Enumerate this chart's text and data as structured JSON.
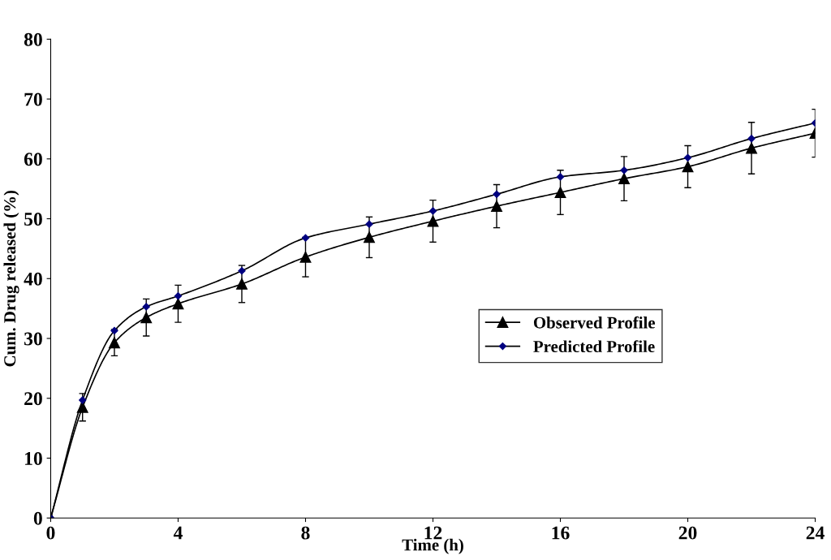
{
  "chart_data": {
    "type": "line",
    "xlabel": "Time (h)",
    "ylabel": "Cum. Drug released (%)",
    "xlim": [
      0,
      24
    ],
    "xticks": [
      0,
      4,
      8,
      12,
      16,
      20,
      24
    ],
    "ylim": [
      0,
      80
    ],
    "yticks": [
      0,
      10,
      20,
      30,
      40,
      50,
      60,
      70,
      80
    ],
    "grid": false,
    "legend": "center",
    "line_style": "solid",
    "series": [
      {
        "name": "Observed Profile",
        "color": "#000000",
        "marker": "triangle",
        "x": [
          0,
          1,
          2,
          3,
          4,
          6,
          8,
          10,
          12,
          14,
          16,
          18,
          20,
          22,
          24
        ],
        "values": [
          0,
          18.5,
          29.3,
          33.5,
          35.8,
          39.1,
          43.6,
          46.9,
          49.6,
          52.1,
          54.4,
          56.7,
          58.7,
          61.8,
          64.3
        ],
        "errors": [
          null,
          2.3,
          2.2,
          3.1,
          3.1,
          3.1,
          3.3,
          3.4,
          3.5,
          3.6,
          3.7,
          3.7,
          3.5,
          4.3,
          4.0
        ]
      },
      {
        "name": "Predicted Profile",
        "color": "#000080",
        "marker": "diamond",
        "x": [
          0,
          1,
          2,
          3,
          4,
          6,
          8,
          10,
          12,
          14,
          16,
          18,
          20,
          22,
          24
        ],
        "values": [
          0,
          19.7,
          31.3,
          35.3,
          37.1,
          41.3,
          46.8,
          49.1,
          51.3,
          54.1,
          57.0,
          58.1,
          60.2,
          63.4,
          66.0
        ]
      }
    ]
  }
}
